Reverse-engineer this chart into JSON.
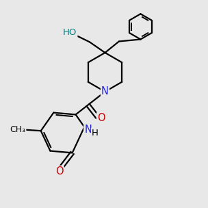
{
  "bg_color": "#e8e8e8",
  "bond_color": "#000000",
  "bond_width": 1.6,
  "N_color": "#2222cc",
  "O_color": "#cc0000",
  "HO_color": "#008080",
  "C_color": "#000000",
  "xlim": [
    0,
    10
  ],
  "ylim": [
    0,
    10
  ]
}
